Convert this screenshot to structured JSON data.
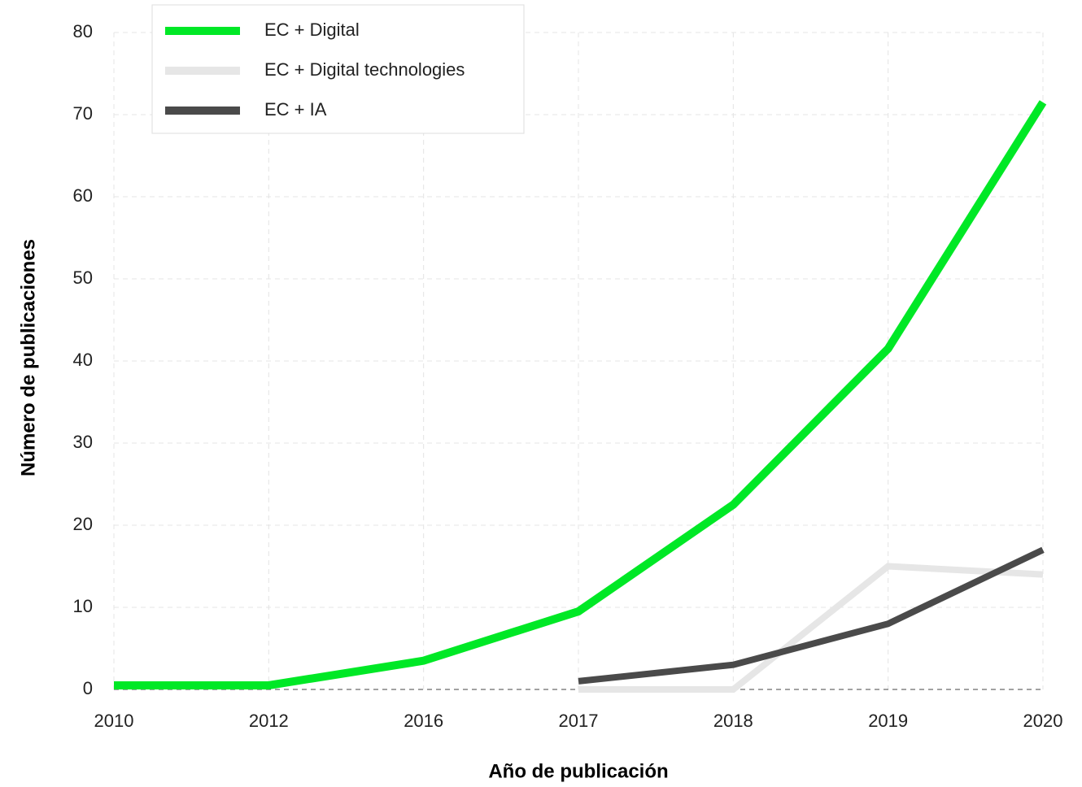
{
  "chart_data": {
    "type": "line",
    "x_label": "Año de publicación",
    "y_label": "Número de publicaciones",
    "categories": [
      "2010",
      "2012",
      "2016",
      "2017",
      "2018",
      "2019",
      "2020"
    ],
    "series": [
      {
        "name": "EC + Digital",
        "color": "#00e826",
        "values": [
          0.5,
          0.5,
          3.5,
          9.5,
          22.5,
          41.5,
          71.5
        ]
      },
      {
        "name": "EC + Digital technologies",
        "color": "#e6e6e6",
        "values": [
          null,
          null,
          null,
          0,
          0,
          15,
          14
        ]
      },
      {
        "name": "EC + IA",
        "color": "#4a4a4a",
        "values": [
          null,
          null,
          null,
          1,
          3,
          8,
          17
        ]
      }
    ],
    "ylim": [
      0,
      80
    ],
    "yticks": [
      0,
      10,
      20,
      30,
      40,
      50,
      60,
      70,
      80
    ],
    "grid": true,
    "legend": "upper left"
  }
}
